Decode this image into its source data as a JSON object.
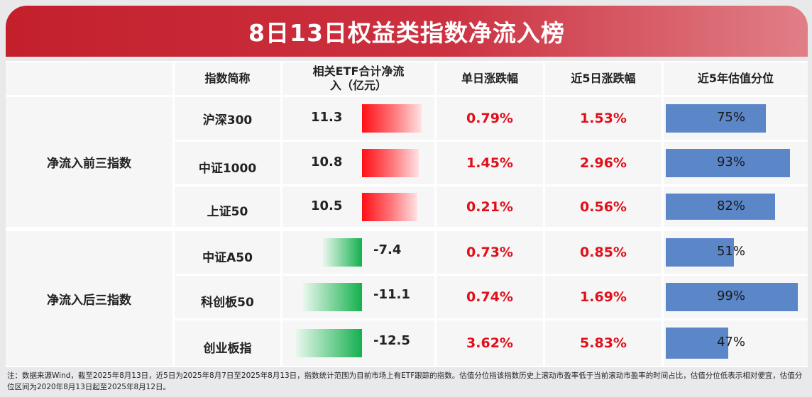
{
  "title": "8日13日权益类指数净流入榜",
  "headers": {
    "name": "指数简称",
    "flow": "相关ETF合计净流入（亿元）",
    "day": "单日涨跌幅",
    "five_day": "近5日涨跌幅",
    "valuation": "近5年估值分位"
  },
  "groups": {
    "top": "净流入前三指数",
    "bottom": "净流入后三指数"
  },
  "colors": {
    "accent": "#c3202c",
    "inflow": "#ff0f14",
    "outflow": "#14b04f",
    "valuation_bar": "#5b86c8",
    "change_text": "#e0101a"
  },
  "chart_data": {
    "type": "table",
    "title": "8日13日权益类指数净流入榜",
    "columns": [
      "指数简称",
      "相关ETF合计净流入（亿元）",
      "单日涨跌幅",
      "近5日涨跌幅",
      "近5年估值分位"
    ],
    "rows": [
      {
        "group": "净流入前三指数",
        "name": "沪深300",
        "flow": 11.3,
        "flow_label": "11.3",
        "day": "0.79%",
        "five_day": "1.53%",
        "valuation": 75,
        "valuation_label": "75%"
      },
      {
        "group": "净流入前三指数",
        "name": "中证1000",
        "flow": 10.8,
        "flow_label": "10.8",
        "day": "1.45%",
        "five_day": "2.96%",
        "valuation": 93,
        "valuation_label": "93%"
      },
      {
        "group": "净流入前三指数",
        "name": "上证50",
        "flow": 10.5,
        "flow_label": "10.5",
        "day": "0.21%",
        "five_day": "0.56%",
        "valuation": 82,
        "valuation_label": "82%"
      },
      {
        "group": "净流入后三指数",
        "name": "中证A50",
        "flow": -7.4,
        "flow_label": "-7.4",
        "day": "0.73%",
        "five_day": "0.85%",
        "valuation": 51,
        "valuation_label": "51%"
      },
      {
        "group": "净流入后三指数",
        "name": "科创板50",
        "flow": -11.1,
        "flow_label": "-11.1",
        "day": "0.74%",
        "five_day": "1.69%",
        "valuation": 99,
        "valuation_label": "99%"
      },
      {
        "group": "净流入后三指数",
        "name": "创业板指",
        "flow": -12.5,
        "flow_label": "-12.5",
        "day": "3.62%",
        "five_day": "5.83%",
        "valuation": 47,
        "valuation_label": "47%"
      }
    ]
  },
  "footnote": "注：数据来源Wind，截至2025年8月13日，近5日为2025年8月7日至2025年8月13日，指数统计范围为目前市场上有ETF跟踪的指数。估值分位指该指数历史上滚动市盈率低于当前滚动市盈率的时间占比，估值分位低表示相对便宜，估值分位区间为2020年8月13日起至2025年8月12日。"
}
